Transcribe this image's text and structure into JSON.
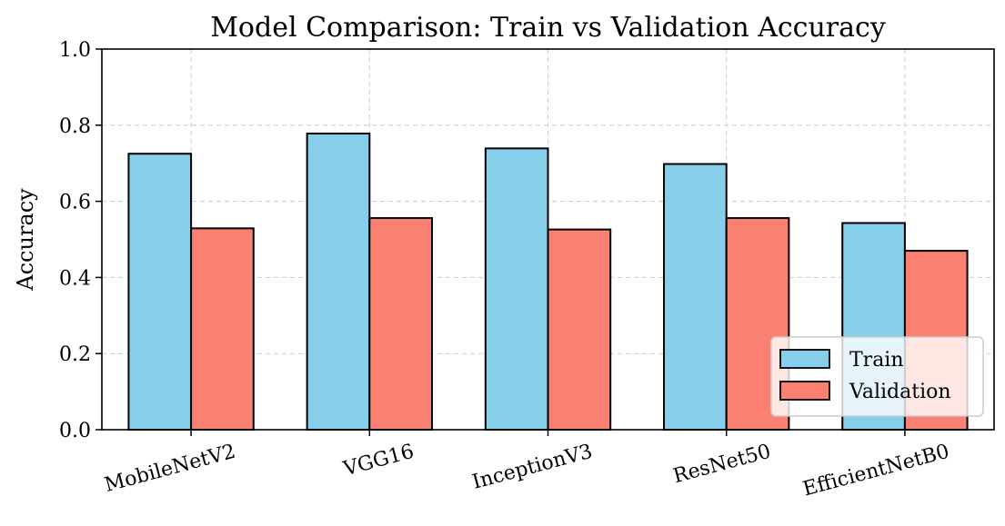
{
  "chart_data": {
    "type": "bar",
    "title": "Model Comparison: Train vs Validation Accuracy",
    "xlabel": "",
    "ylabel": "Accuracy",
    "ylim": [
      0,
      1.0
    ],
    "yticks": [
      "0.0",
      "0.2",
      "0.4",
      "0.6",
      "0.8",
      "1.0"
    ],
    "categories": [
      "MobileNetV2",
      "VGG16",
      "InceptionV3",
      "ResNet50",
      "EfficientNetB0"
    ],
    "series": [
      {
        "name": "Train",
        "color": "#87ceeb",
        "values": [
          0.725,
          0.778,
          0.739,
          0.698,
          0.543
        ]
      },
      {
        "name": "Validation",
        "color": "#fa8072",
        "values": [
          0.529,
          0.556,
          0.526,
          0.556,
          0.47
        ]
      }
    ],
    "grid": true,
    "legend_position": "lower-right"
  }
}
